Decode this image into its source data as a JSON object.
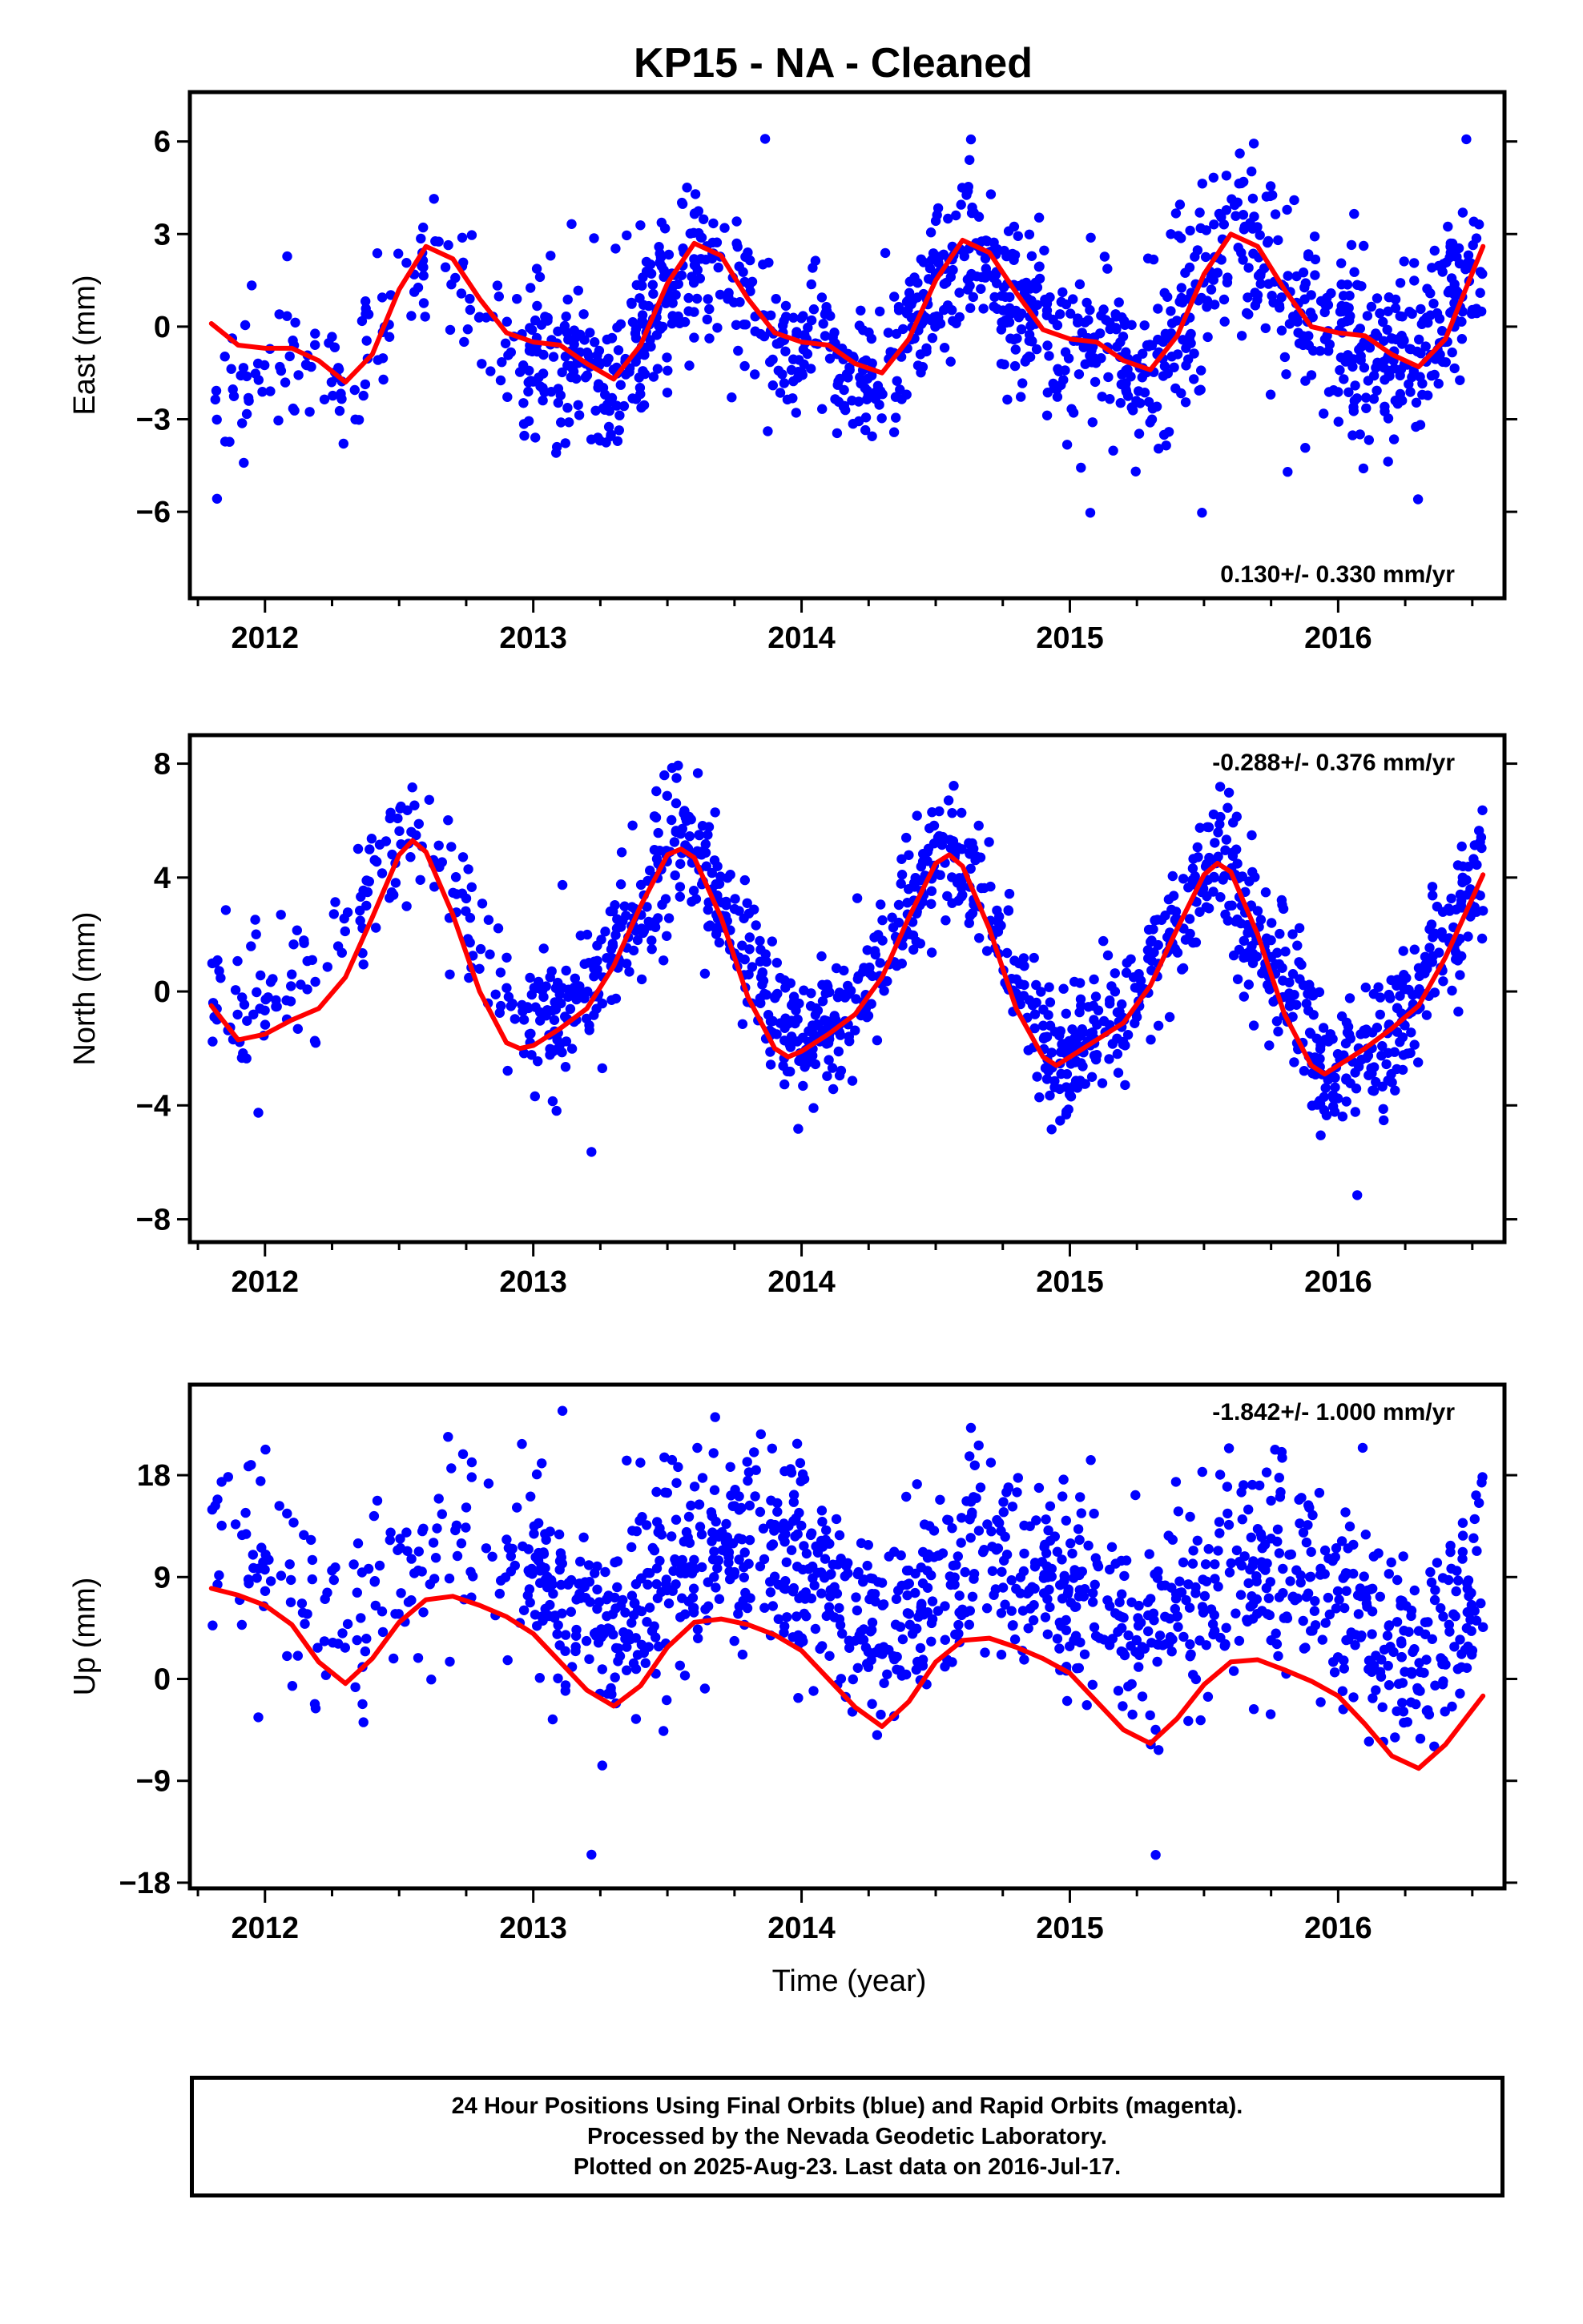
{
  "title": "KP15  - NA - Cleaned",
  "x_axis_label": "Time (year)",
  "footer": {
    "line1": "24 Hour Positions Using Final Orbits (blue) and Rapid Orbits (magenta).",
    "line2": "Processed by the Nevada Geodetic Laboratory.",
    "line3": "Plotted on 2025-Aug-23. Last data on 2016-Jul-17."
  },
  "colors": {
    "points": "#0000ff",
    "fit": "#ff0000",
    "frame": "#000000"
  },
  "chart_data": [
    {
      "type": "scatter",
      "ylabel": "East (mm)",
      "rate_text": "0.130+/- 0.330 mm/yr",
      "rate_position": "bottom-right",
      "xlim": [
        2011.72,
        2016.62
      ],
      "ylim": [
        -8.8,
        7.6
      ],
      "xticks": [
        2012,
        2013,
        2014,
        2015,
        2016
      ],
      "yticks": [
        6,
        3,
        0,
        -3,
        -6
      ],
      "ytick_labels": [
        "6",
        "3",
        "0",
        "−3",
        "−6"
      ],
      "start": 2011.8,
      "end": 2016.54,
      "trend": 0.13,
      "offset": -0.5,
      "noise": 1.3,
      "seasonal": [
        [
          2011.8,
          -1.6
        ],
        [
          2012.0,
          -0.2
        ],
        [
          2012.3,
          -1.3
        ],
        [
          2012.62,
          3.1
        ],
        [
          2012.9,
          0.1
        ],
        [
          2013.3,
          -1.2
        ],
        [
          2013.62,
          3.2
        ],
        [
          2013.9,
          0.0
        ],
        [
          2014.3,
          -1.1
        ],
        [
          2014.62,
          3.2
        ],
        [
          2014.9,
          0.1
        ],
        [
          2015.3,
          -1.0
        ],
        [
          2015.62,
          3.4
        ],
        [
          2015.9,
          0.3
        ],
        [
          2016.3,
          -0.9
        ],
        [
          2016.54,
          2.9
        ]
      ],
      "fit": [
        [
          2011.8,
          0.1
        ],
        [
          2011.9,
          -0.6
        ],
        [
          2012.0,
          -0.7
        ],
        [
          2012.1,
          -0.7
        ],
        [
          2012.2,
          -1.1
        ],
        [
          2012.3,
          -1.8
        ],
        [
          2012.4,
          -0.9
        ],
        [
          2012.5,
          1.2
        ],
        [
          2012.6,
          2.6
        ],
        [
          2012.7,
          2.2
        ],
        [
          2012.8,
          0.9
        ],
        [
          2012.9,
          -0.2
        ],
        [
          2013.0,
          -0.5
        ],
        [
          2013.1,
          -0.6
        ],
        [
          2013.2,
          -1.2
        ],
        [
          2013.3,
          -1.7
        ],
        [
          2013.4,
          -0.6
        ],
        [
          2013.5,
          1.4
        ],
        [
          2013.6,
          2.7
        ],
        [
          2013.7,
          2.3
        ],
        [
          2013.8,
          0.9
        ],
        [
          2013.9,
          -0.2
        ],
        [
          2014.0,
          -0.5
        ],
        [
          2014.1,
          -0.6
        ],
        [
          2014.2,
          -1.2
        ],
        [
          2014.3,
          -1.5
        ],
        [
          2014.4,
          -0.4
        ],
        [
          2014.5,
          1.5
        ],
        [
          2014.6,
          2.8
        ],
        [
          2014.7,
          2.4
        ],
        [
          2014.8,
          1.1
        ],
        [
          2014.9,
          -0.1
        ],
        [
          2015.0,
          -0.4
        ],
        [
          2015.1,
          -0.5
        ],
        [
          2015.2,
          -1.1
        ],
        [
          2015.3,
          -1.4
        ],
        [
          2015.4,
          -0.3
        ],
        [
          2015.5,
          1.7
        ],
        [
          2015.6,
          3.0
        ],
        [
          2015.7,
          2.6
        ],
        [
          2015.8,
          1.2
        ],
        [
          2015.9,
          0.0
        ],
        [
          2016.0,
          -0.2
        ],
        [
          2016.1,
          -0.3
        ],
        [
          2016.2,
          -0.9
        ],
        [
          2016.3,
          -1.3
        ],
        [
          2016.4,
          -0.4
        ],
        [
          2016.54,
          2.6
        ]
      ]
    },
    {
      "type": "scatter",
      "ylabel": "North (mm)",
      "rate_text": "-0.288+/- 0.376 mm/yr",
      "rate_position": "top-right",
      "xlim": [
        2011.72,
        2016.62
      ],
      "ylim": [
        -8.8,
        9.0
      ],
      "xticks": [
        2012,
        2013,
        2014,
        2015,
        2016
      ],
      "yticks": [
        8,
        4,
        0,
        -4,
        -8
      ],
      "ytick_labels": [
        "8",
        "4",
        "0",
        "−4",
        "−8"
      ],
      "start": 2011.8,
      "end": 2016.54,
      "trend": -0.288,
      "offset": 0.4,
      "noise": 1.15,
      "seasonal": [
        [
          2011.8,
          -0.8
        ],
        [
          2011.9,
          -1.5
        ],
        [
          2012.2,
          -0.3
        ],
        [
          2012.55,
          5.5
        ],
        [
          2012.95,
          -2.0
        ],
        [
          2013.2,
          -0.8
        ],
        [
          2013.55,
          5.2
        ],
        [
          2013.95,
          -2.2
        ],
        [
          2014.2,
          -1.0
        ],
        [
          2014.55,
          5.2
        ],
        [
          2014.95,
          -2.4
        ],
        [
          2015.2,
          -1.1
        ],
        [
          2015.55,
          5.0
        ],
        [
          2015.95,
          -2.6
        ],
        [
          2016.2,
          -1.2
        ],
        [
          2016.54,
          4.3
        ]
      ],
      "fit": [
        [
          2011.8,
          -0.5
        ],
        [
          2011.9,
          -1.7
        ],
        [
          2012.0,
          -1.5
        ],
        [
          2012.1,
          -1.0
        ],
        [
          2012.2,
          -0.6
        ],
        [
          2012.3,
          0.5
        ],
        [
          2012.4,
          2.6
        ],
        [
          2012.5,
          4.8
        ],
        [
          2012.55,
          5.3
        ],
        [
          2012.6,
          4.9
        ],
        [
          2012.7,
          2.7
        ],
        [
          2012.8,
          0.0
        ],
        [
          2012.9,
          -1.8
        ],
        [
          2012.95,
          -2.0
        ],
        [
          2013.0,
          -1.9
        ],
        [
          2013.1,
          -1.3
        ],
        [
          2013.2,
          -0.6
        ],
        [
          2013.3,
          0.9
        ],
        [
          2013.4,
          3.0
        ],
        [
          2013.5,
          4.8
        ],
        [
          2013.55,
          5.0
        ],
        [
          2013.6,
          4.7
        ],
        [
          2013.7,
          2.6
        ],
        [
          2013.8,
          -0.2
        ],
        [
          2013.9,
          -2.0
        ],
        [
          2013.95,
          -2.3
        ],
        [
          2014.0,
          -2.1
        ],
        [
          2014.1,
          -1.5
        ],
        [
          2014.2,
          -0.8
        ],
        [
          2014.3,
          0.5
        ],
        [
          2014.4,
          2.6
        ],
        [
          2014.5,
          4.5
        ],
        [
          2014.55,
          4.8
        ],
        [
          2014.6,
          4.4
        ],
        [
          2014.7,
          2.2
        ],
        [
          2014.8,
          -0.6
        ],
        [
          2014.9,
          -2.3
        ],
        [
          2014.95,
          -2.6
        ],
        [
          2015.0,
          -2.3
        ],
        [
          2015.1,
          -1.7
        ],
        [
          2015.2,
          -1.1
        ],
        [
          2015.3,
          0.2
        ],
        [
          2015.4,
          2.2
        ],
        [
          2015.5,
          4.1
        ],
        [
          2015.55,
          4.5
        ],
        [
          2015.6,
          4.2
        ],
        [
          2015.7,
          2.0
        ],
        [
          2015.8,
          -0.8
        ],
        [
          2015.9,
          -2.6
        ],
        [
          2015.95,
          -2.9
        ],
        [
          2016.0,
          -2.6
        ],
        [
          2016.1,
          -2.0
        ],
        [
          2016.2,
          -1.3
        ],
        [
          2016.3,
          -0.5
        ],
        [
          2016.4,
          1.2
        ],
        [
          2016.54,
          4.1
        ]
      ]
    },
    {
      "type": "scatter",
      "ylabel": "Up (mm)",
      "rate_text": "-1.842+/- 1.000 mm/yr",
      "rate_position": "top-right",
      "xlim": [
        2011.72,
        2016.62
      ],
      "ylim": [
        -18.5,
        26.0
      ],
      "xticks": [
        2012,
        2013,
        2014,
        2015,
        2016
      ],
      "yticks": [
        18,
        9,
        0,
        -9,
        -18
      ],
      "ytick_labels": [
        "18",
        "9",
        "0",
        "−9",
        "−18"
      ],
      "start": 2011.8,
      "end": 2016.54,
      "trend": -1.842,
      "offset": 8.0,
      "noise": 4.3,
      "seasonal": [
        [
          2011.8,
          0.0
        ],
        [
          2012.0,
          0.0
        ],
        [
          2012.3,
          -8.0
        ],
        [
          2012.65,
          3.0
        ],
        [
          2012.9,
          0.5
        ],
        [
          2013.3,
          -4.5
        ],
        [
          2013.65,
          3.5
        ],
        [
          2013.95,
          3.0
        ],
        [
          2014.3,
          -3.5
        ],
        [
          2014.65,
          4.5
        ],
        [
          2014.95,
          3.5
        ],
        [
          2015.3,
          -2.5
        ],
        [
          2015.65,
          6.0
        ],
        [
          2015.95,
          3.0
        ],
        [
          2016.3,
          -2.0
        ],
        [
          2016.54,
          5.5
        ]
      ],
      "fit": [
        [
          2011.8,
          8.0
        ],
        [
          2011.9,
          7.4
        ],
        [
          2012.0,
          6.5
        ],
        [
          2012.1,
          4.8
        ],
        [
          2012.2,
          1.5
        ],
        [
          2012.3,
          -0.4
        ],
        [
          2012.4,
          1.8
        ],
        [
          2012.5,
          5.0
        ],
        [
          2012.6,
          7.0
        ],
        [
          2012.7,
          7.3
        ],
        [
          2012.8,
          6.5
        ],
        [
          2012.9,
          5.5
        ],
        [
          2013.0,
          4.0
        ],
        [
          2013.1,
          1.5
        ],
        [
          2013.2,
          -1.0
        ],
        [
          2013.3,
          -2.4
        ],
        [
          2013.4,
          -0.6
        ],
        [
          2013.5,
          2.8
        ],
        [
          2013.6,
          5.0
        ],
        [
          2013.7,
          5.3
        ],
        [
          2013.8,
          4.8
        ],
        [
          2013.9,
          3.9
        ],
        [
          2014.0,
          2.5
        ],
        [
          2014.1,
          0.0
        ],
        [
          2014.2,
          -2.5
        ],
        [
          2014.3,
          -4.2
        ],
        [
          2014.4,
          -2.0
        ],
        [
          2014.5,
          1.5
        ],
        [
          2014.6,
          3.4
        ],
        [
          2014.7,
          3.6
        ],
        [
          2014.8,
          2.8
        ],
        [
          2014.9,
          1.8
        ],
        [
          2015.0,
          0.5
        ],
        [
          2015.1,
          -2.0
        ],
        [
          2015.2,
          -4.5
        ],
        [
          2015.3,
          -5.7
        ],
        [
          2015.4,
          -3.5
        ],
        [
          2015.5,
          -0.5
        ],
        [
          2015.6,
          1.5
        ],
        [
          2015.7,
          1.7
        ],
        [
          2015.8,
          0.8
        ],
        [
          2015.9,
          -0.2
        ],
        [
          2016.0,
          -1.5
        ],
        [
          2016.1,
          -4.0
        ],
        [
          2016.2,
          -6.8
        ],
        [
          2016.3,
          -7.9
        ],
        [
          2016.4,
          -5.8
        ],
        [
          2016.54,
          -1.5
        ]
      ]
    }
  ]
}
